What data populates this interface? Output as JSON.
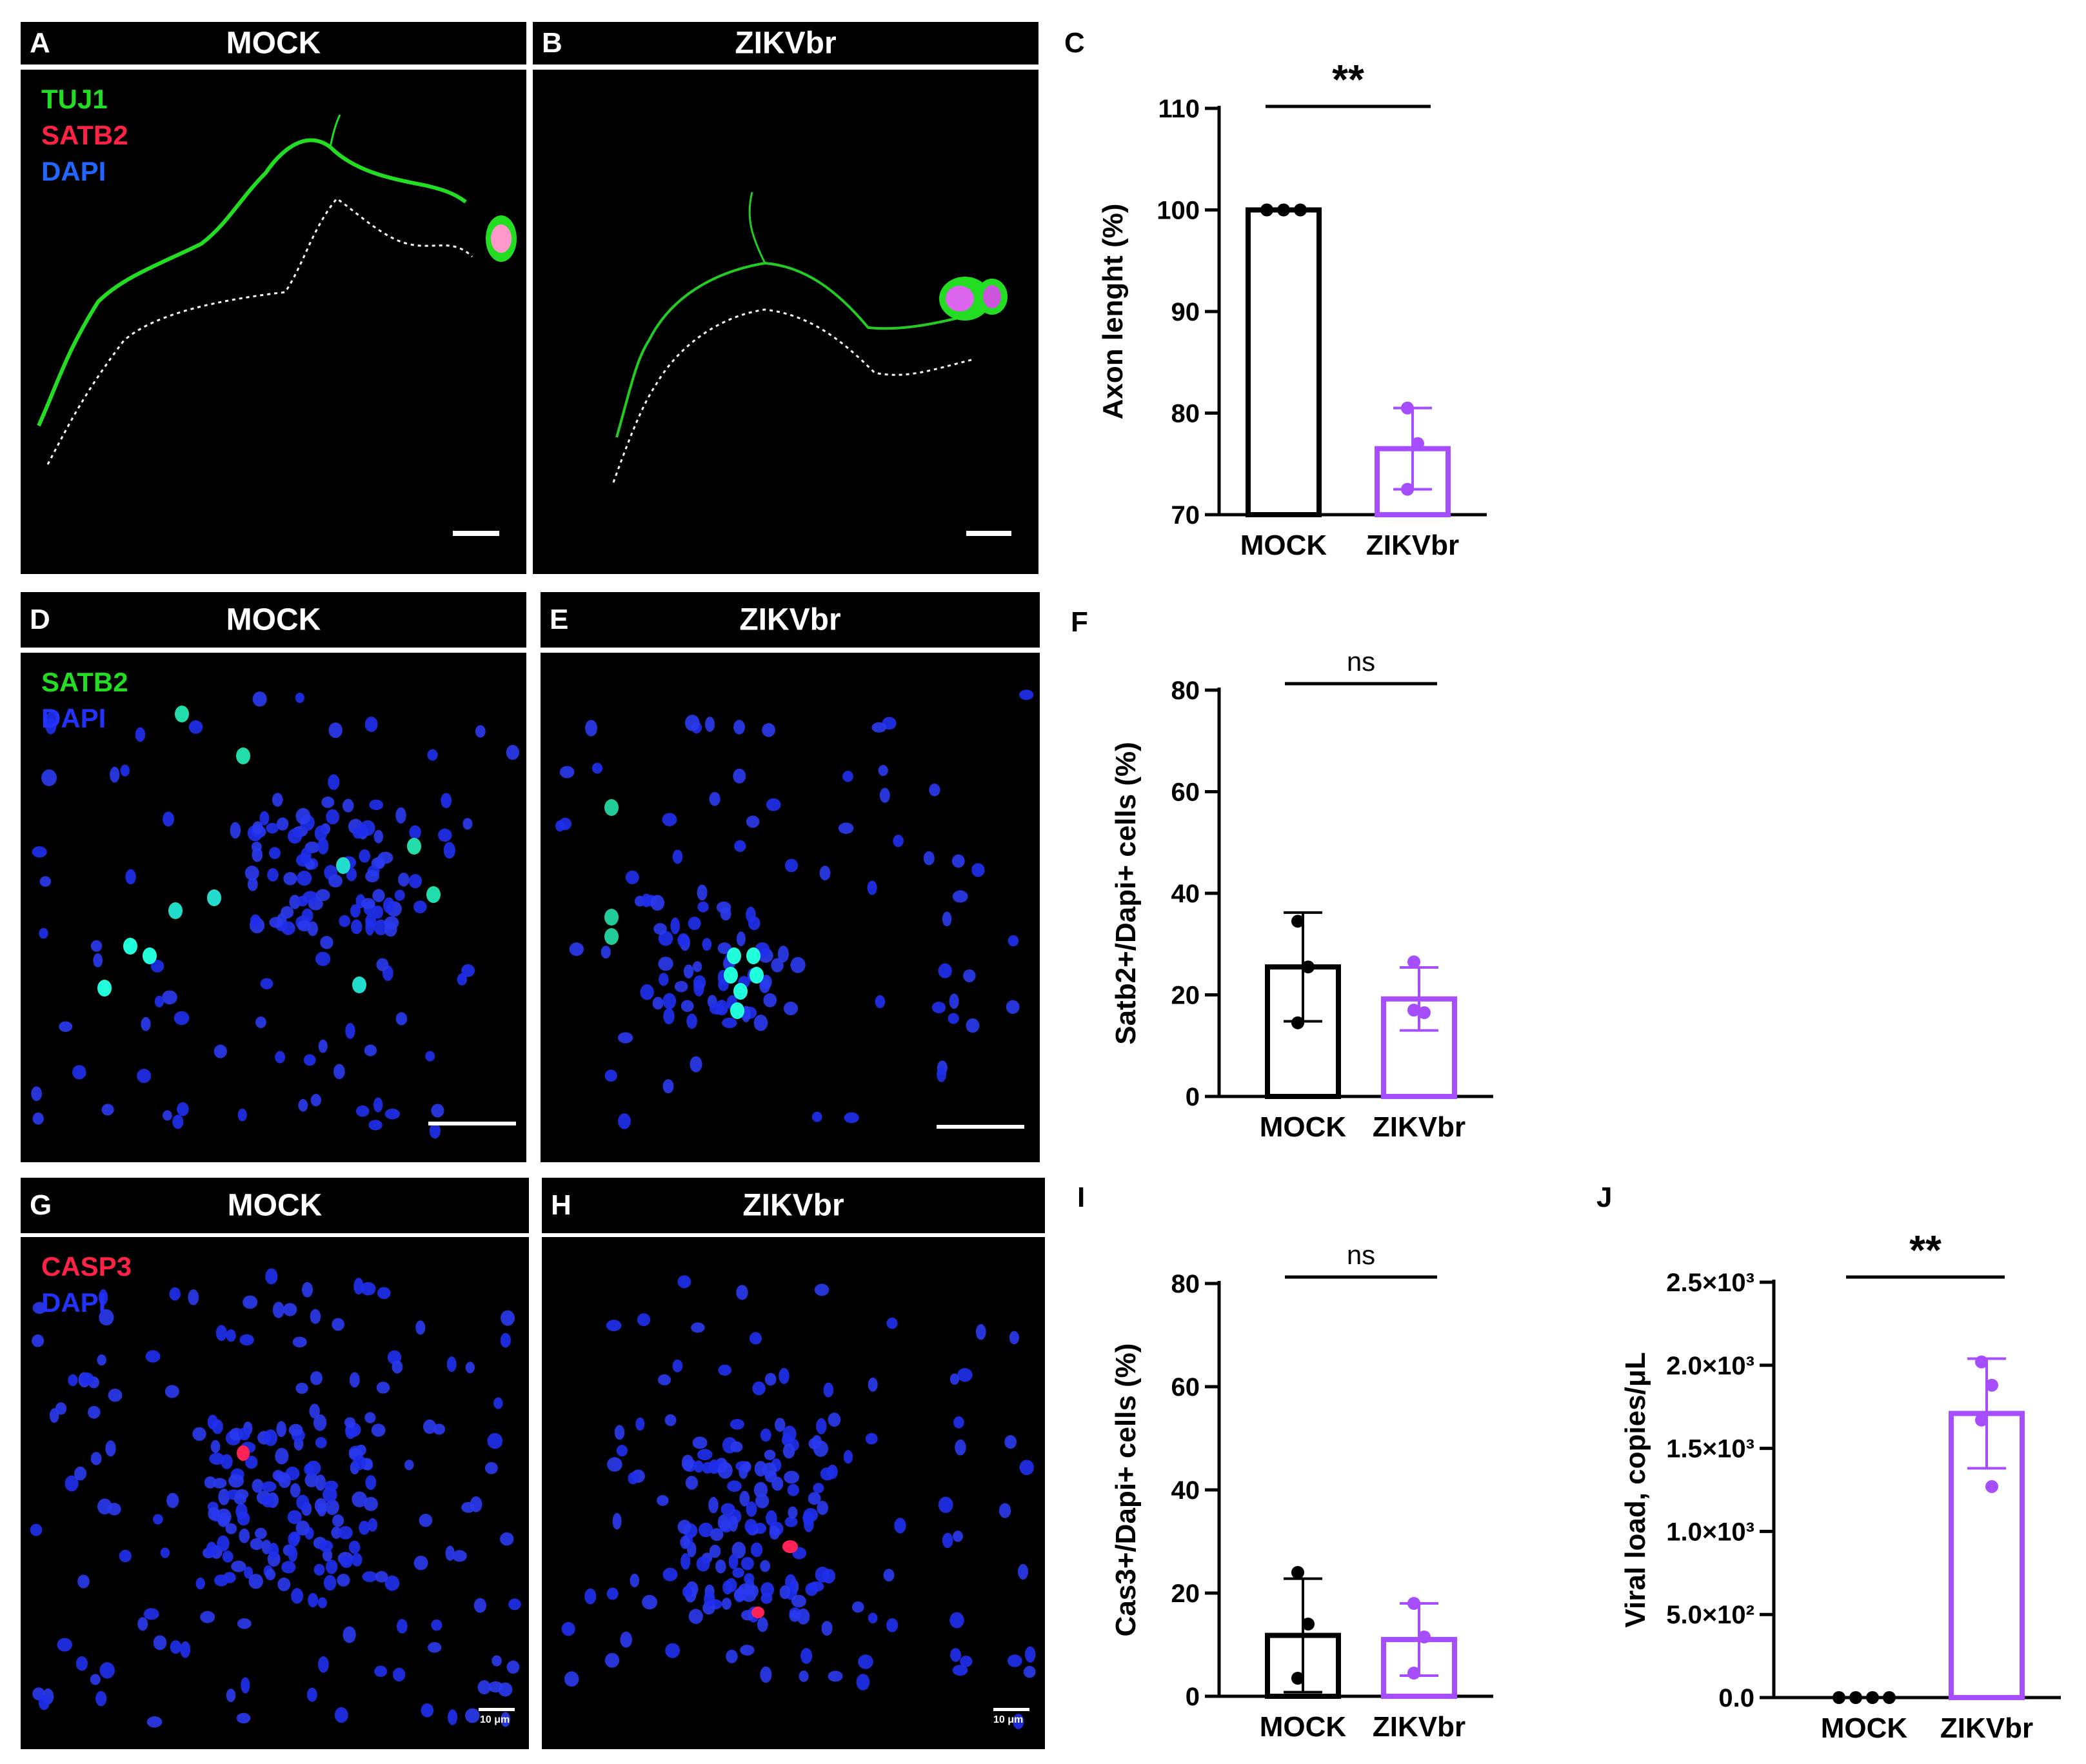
{
  "panels": {
    "A": {
      "letter": "A",
      "title": "MOCK",
      "legend": [
        {
          "text": "TUJ1",
          "color": "#22dd22"
        },
        {
          "text": "SATB2",
          "color": "#ff2244"
        },
        {
          "text": "DAPI",
          "color": "#2255ff"
        }
      ]
    },
    "B": {
      "letter": "B",
      "title": "ZIKVbr"
    },
    "D": {
      "letter": "D",
      "title": "MOCK",
      "legend": [
        {
          "text": "SATB2",
          "color": "#22dd22"
        },
        {
          "text": "DAPI",
          "color": "#2233ff"
        }
      ]
    },
    "E": {
      "letter": "E",
      "title": "ZIKVbr"
    },
    "G": {
      "letter": "G",
      "title": "MOCK",
      "legend": [
        {
          "text": "CASP3",
          "color": "#ff2244"
        },
        {
          "text": "DAPI",
          "color": "#2233ff"
        }
      ],
      "scalebar": "10 μm"
    },
    "H": {
      "letter": "H",
      "title": "ZIKVbr",
      "scalebar": "10 μm"
    }
  },
  "chart_letters": {
    "C": "C",
    "F": "F",
    "I": "I",
    "J": "J"
  },
  "colors": {
    "mock": "#000000",
    "zikv": "#a64dff"
  },
  "chart_data": [
    {
      "id": "C",
      "type": "bar",
      "categories": [
        "MOCK",
        "ZIKVbr"
      ],
      "values": [
        100,
        76.5
      ],
      "errors": [
        0,
        4
      ],
      "points": [
        [
          100,
          100,
          100
        ],
        [
          80.5,
          77,
          72.5
        ]
      ],
      "ylabel": "Axon lenght (%)",
      "ylim": [
        70,
        110
      ],
      "yticks": [
        "70",
        "80",
        "90",
        "100",
        "110"
      ],
      "yvals": [
        70,
        80,
        90,
        100,
        110
      ],
      "significance": "**"
    },
    {
      "id": "F",
      "type": "bar",
      "categories": [
        "MOCK",
        "ZIKVbr"
      ],
      "values": [
        25.5,
        19.2
      ],
      "errors": [
        10.7,
        6.2
      ],
      "points": [
        [
          34.5,
          25.5,
          14.5
        ],
        [
          26.5,
          16.5,
          17
        ]
      ],
      "ylabel": "Satb2+/Dapi+ cells (%)",
      "ylim": [
        0,
        80
      ],
      "yticks": [
        "0",
        "20",
        "40",
        "60",
        "80"
      ],
      "yvals": [
        0,
        20,
        40,
        60,
        80
      ],
      "significance": "ns"
    },
    {
      "id": "I",
      "type": "bar",
      "categories": [
        "MOCK",
        "ZIKVbr"
      ],
      "values": [
        11.8,
        11.0
      ],
      "errors": [
        11,
        7
      ],
      "points": [
        [
          24,
          14,
          3.5
        ],
        [
          18,
          11.5,
          4.5
        ]
      ],
      "ylabel": "Cas3+/Dapi+ cells (%)",
      "ylim": [
        0,
        80
      ],
      "yticks": [
        "0",
        "20",
        "40",
        "60",
        "80"
      ],
      "yvals": [
        0,
        20,
        40,
        60,
        80
      ],
      "significance": "ns"
    },
    {
      "id": "J",
      "type": "bar",
      "categories": [
        "MOCK",
        "ZIKVbr"
      ],
      "values": [
        0,
        1710
      ],
      "errors": [
        0,
        330
      ],
      "points": [
        [
          0,
          0,
          0,
          0
        ],
        [
          2020,
          1880,
          1670,
          1270
        ]
      ],
      "ylabel": "Viral load, copies/μL",
      "ylim": [
        0,
        2500
      ],
      "yticks": [
        "0.0",
        "5.0×10²",
        "1.0×10³",
        "1.5×10³",
        "2.0×10³",
        "2.5×10³"
      ],
      "yvals": [
        0,
        500,
        1000,
        1500,
        2000,
        2500
      ],
      "significance": "**"
    }
  ]
}
